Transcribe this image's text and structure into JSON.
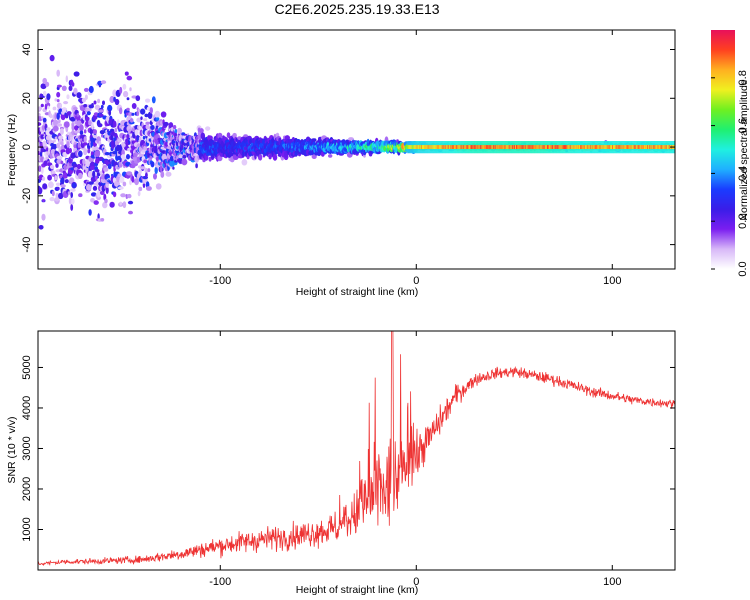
{
  "figure_title": "C2E6.2025.235.19.33.E13",
  "chart_data": [
    {
      "type": "heatmap",
      "title": "C2E6.2025.235.19.33.E13",
      "xlabel": "Height of straight line (km)",
      "ylabel": "Frequency (Hz)",
      "xlim": [
        -193,
        132
      ],
      "ylim": [
        -50,
        48
      ],
      "xticks": [
        -100,
        0,
        100
      ],
      "yticks": [
        -40,
        -20,
        0,
        20,
        40
      ],
      "colorbar": {
        "label": "Normalized spectral amplitude",
        "range": [
          0,
          1
        ],
        "ticks": [
          0.0,
          0.2,
          0.4,
          0.6,
          0.8
        ],
        "colormap": [
          "#ffffff",
          "#d8b8f8",
          "#7a1ef0",
          "#3a1de8",
          "#1a3cff",
          "#1fb0ff",
          "#1ff0e0",
          "#1ff070",
          "#70f020",
          "#f0f020",
          "#ffb020",
          "#ff4020",
          "#e8105a"
        ]
      },
      "description_of_values": {
        "band_center_frequency_hz": 0,
        "amplitude_profile": [
          {
            "x": -193,
            "peak": 0.25,
            "spread_hz": 48
          },
          {
            "x": -150,
            "peak": 0.3,
            "spread_hz": 45
          },
          {
            "x": -120,
            "peak": 0.35,
            "spread_hz": 12
          },
          {
            "x": -90,
            "peak": 0.3,
            "spread_hz": 8
          },
          {
            "x": -60,
            "peak": 0.35,
            "spread_hz": 7
          },
          {
            "x": -40,
            "peak": 0.45,
            "spread_hz": 5
          },
          {
            "x": -20,
            "peak": 0.55,
            "spread_hz": 4
          },
          {
            "x": 0,
            "peak": 0.85,
            "spread_hz": 2.5
          },
          {
            "x": 30,
            "peak": 0.95,
            "spread_hz": 2
          },
          {
            "x": 60,
            "peak": 0.95,
            "spread_hz": 2
          },
          {
            "x": 90,
            "peak": 0.9,
            "spread_hz": 2.5
          },
          {
            "x": 132,
            "peak": 0.9,
            "spread_hz": 2.5
          }
        ]
      }
    },
    {
      "type": "line",
      "xlabel": "Height of straight line (km)",
      "ylabel": "SNR (10 * v/v)",
      "xlim": [
        -193,
        132
      ],
      "ylim": [
        0,
        5900
      ],
      "xticks": [
        -100,
        0,
        100
      ],
      "yticks": [
        1000,
        2000,
        3000,
        4000,
        5000
      ],
      "series": [
        {
          "name": "SNR",
          "color": "#ee3333",
          "x": [
            -193,
            -180,
            -160,
            -140,
            -120,
            -100,
            -80,
            -60,
            -50,
            -40,
            -30,
            -25,
            -20,
            -15,
            -10,
            -5,
            0,
            10,
            20,
            30,
            40,
            50,
            60,
            70,
            80,
            90,
            100,
            110,
            120,
            132
          ],
          "values": [
            150,
            200,
            220,
            260,
            400,
            600,
            750,
            850,
            950,
            1050,
            1400,
            1700,
            1900,
            2000,
            2300,
            2600,
            2800,
            3500,
            4300,
            4700,
            4850,
            4900,
            4800,
            4700,
            4550,
            4400,
            4300,
            4200,
            4150,
            4100
          ],
          "noise_amplitude": [
            60,
            80,
            100,
            120,
            200,
            300,
            380,
            420,
            480,
            550,
            800,
            1100,
            1500,
            1700,
            1300,
            900,
            700,
            500,
            350,
            200,
            180,
            180,
            180,
            180,
            170,
            170,
            160,
            160,
            150,
            150
          ]
        }
      ]
    }
  ]
}
